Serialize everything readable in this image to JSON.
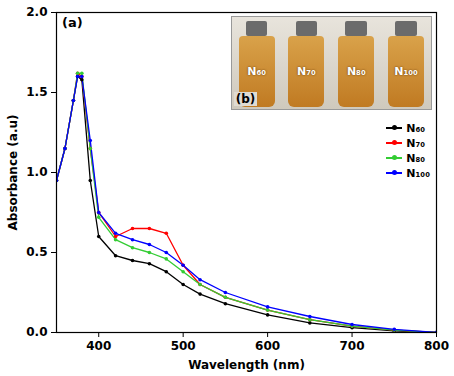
{
  "chart_data": {
    "type": "line",
    "x_label": "Wavelength (nm)",
    "y_label": "Absorbance (a.u)",
    "annotations": [
      "(a)",
      "(b)"
    ],
    "x": [
      350,
      360,
      370,
      375,
      380,
      390,
      400,
      420,
      440,
      460,
      480,
      500,
      520,
      550,
      600,
      650,
      700,
      750,
      800
    ],
    "series": [
      {
        "name": "N₆₀",
        "color": "#000000",
        "values": [
          0.95,
          1.15,
          1.45,
          1.6,
          1.58,
          0.95,
          0.6,
          0.48,
          0.45,
          0.43,
          0.38,
          0.3,
          0.24,
          0.18,
          0.11,
          0.06,
          0.03,
          0.01,
          0.0
        ]
      },
      {
        "name": "N₇₀",
        "color": "#ff0000",
        "values": [
          0.95,
          1.15,
          1.45,
          1.62,
          1.6,
          1.15,
          0.75,
          0.6,
          0.65,
          0.65,
          0.62,
          0.42,
          0.3,
          0.22,
          0.14,
          0.08,
          0.04,
          0.015,
          0.0
        ]
      },
      {
        "name": "N₈₀",
        "color": "#33cc33",
        "values": [
          0.95,
          1.15,
          1.45,
          1.62,
          1.62,
          1.15,
          0.72,
          0.58,
          0.53,
          0.5,
          0.46,
          0.38,
          0.3,
          0.22,
          0.14,
          0.08,
          0.04,
          0.015,
          0.0
        ]
      },
      {
        "name": "N₁₀₀",
        "color": "#0000ff",
        "values": [
          0.95,
          1.15,
          1.45,
          1.6,
          1.6,
          1.2,
          0.75,
          0.62,
          0.58,
          0.55,
          0.5,
          0.42,
          0.33,
          0.25,
          0.16,
          0.1,
          0.05,
          0.02,
          0.0
        ]
      }
    ],
    "marker": "circle",
    "xlim": [
      350,
      800
    ],
    "xticks": [
      400,
      500,
      600,
      700,
      800
    ],
    "ylim": [
      0,
      2
    ],
    "yticks": [
      {
        "value": 0,
        "label": "0.0"
      },
      {
        "value": 0.5,
        "label": "0.5"
      },
      {
        "value": 1,
        "label": "1.0"
      },
      {
        "value": 1.5,
        "label": "1.5"
      },
      {
        "value": 2,
        "label": "2.0"
      }
    ],
    "legend": "right",
    "grid": false
  }
}
